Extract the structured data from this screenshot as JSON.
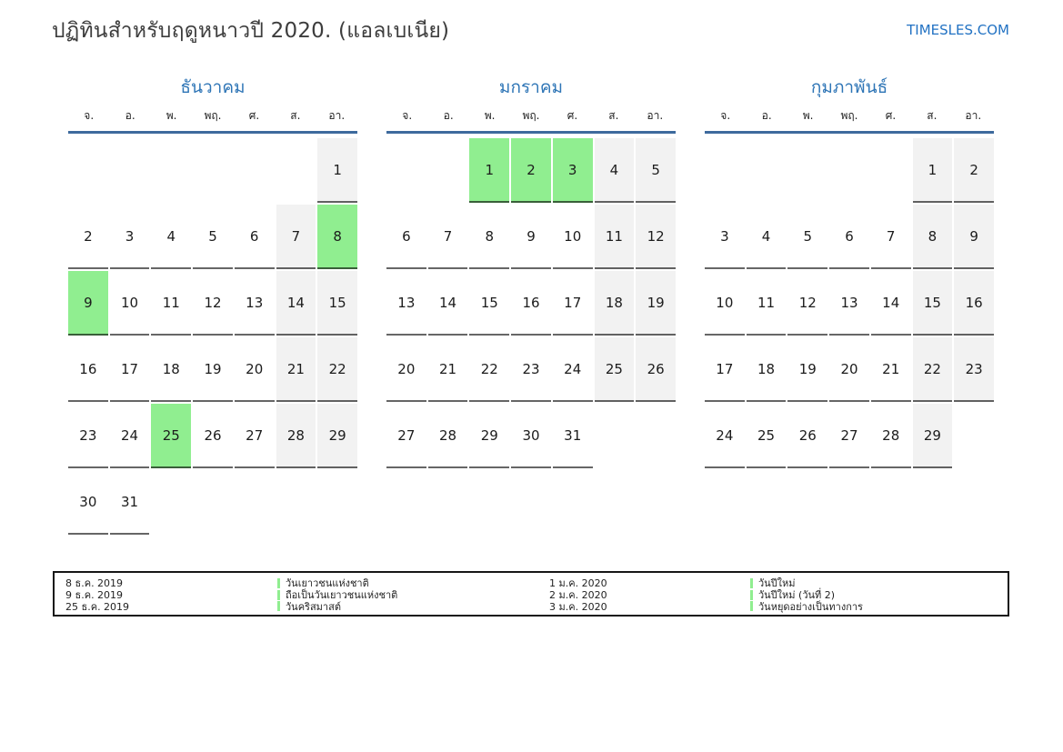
{
  "header": {
    "title": "ปฏิทินสำหรับฤดูหนาวปี 2020. (แอลเบเนีย)",
    "site": "TIMESLES.COM"
  },
  "weekdays": [
    "จ.",
    "อ.",
    "พ.",
    "พฤ.",
    "ศ.",
    "ส.",
    "อา."
  ],
  "months": [
    {
      "name": "ธันวาคม",
      "weeks": [
        [
          null,
          null,
          null,
          null,
          null,
          null,
          {
            "d": "1",
            "t": "weekend"
          }
        ],
        [
          {
            "d": "2",
            "t": "workday"
          },
          {
            "d": "3",
            "t": "workday"
          },
          {
            "d": "4",
            "t": "workday"
          },
          {
            "d": "5",
            "t": "workday"
          },
          {
            "d": "6",
            "t": "workday"
          },
          {
            "d": "7",
            "t": "weekend"
          },
          {
            "d": "8",
            "t": "holiday"
          }
        ],
        [
          {
            "d": "9",
            "t": "holiday"
          },
          {
            "d": "10",
            "t": "workday"
          },
          {
            "d": "11",
            "t": "workday"
          },
          {
            "d": "12",
            "t": "workday"
          },
          {
            "d": "13",
            "t": "workday"
          },
          {
            "d": "14",
            "t": "weekend"
          },
          {
            "d": "15",
            "t": "weekend"
          }
        ],
        [
          {
            "d": "16",
            "t": "workday"
          },
          {
            "d": "17",
            "t": "workday"
          },
          {
            "d": "18",
            "t": "workday"
          },
          {
            "d": "19",
            "t": "workday"
          },
          {
            "d": "20",
            "t": "workday"
          },
          {
            "d": "21",
            "t": "weekend"
          },
          {
            "d": "22",
            "t": "weekend"
          }
        ],
        [
          {
            "d": "23",
            "t": "workday"
          },
          {
            "d": "24",
            "t": "workday"
          },
          {
            "d": "25",
            "t": "holiday"
          },
          {
            "d": "26",
            "t": "workday"
          },
          {
            "d": "27",
            "t": "workday"
          },
          {
            "d": "28",
            "t": "weekend"
          },
          {
            "d": "29",
            "t": "weekend"
          }
        ],
        [
          {
            "d": "30",
            "t": "workday"
          },
          {
            "d": "31",
            "t": "workday"
          },
          null,
          null,
          null,
          null,
          null
        ]
      ]
    },
    {
      "name": "มกราคม",
      "weeks": [
        [
          null,
          null,
          {
            "d": "1",
            "t": "holiday"
          },
          {
            "d": "2",
            "t": "holiday"
          },
          {
            "d": "3",
            "t": "holiday"
          },
          {
            "d": "4",
            "t": "weekend"
          },
          {
            "d": "5",
            "t": "weekend"
          }
        ],
        [
          {
            "d": "6",
            "t": "workday"
          },
          {
            "d": "7",
            "t": "workday"
          },
          {
            "d": "8",
            "t": "workday"
          },
          {
            "d": "9",
            "t": "workday"
          },
          {
            "d": "10",
            "t": "workday"
          },
          {
            "d": "11",
            "t": "weekend"
          },
          {
            "d": "12",
            "t": "weekend"
          }
        ],
        [
          {
            "d": "13",
            "t": "workday"
          },
          {
            "d": "14",
            "t": "workday"
          },
          {
            "d": "15",
            "t": "workday"
          },
          {
            "d": "16",
            "t": "workday"
          },
          {
            "d": "17",
            "t": "workday"
          },
          {
            "d": "18",
            "t": "weekend"
          },
          {
            "d": "19",
            "t": "weekend"
          }
        ],
        [
          {
            "d": "20",
            "t": "workday"
          },
          {
            "d": "21",
            "t": "workday"
          },
          {
            "d": "22",
            "t": "workday"
          },
          {
            "d": "23",
            "t": "workday"
          },
          {
            "d": "24",
            "t": "workday"
          },
          {
            "d": "25",
            "t": "weekend"
          },
          {
            "d": "26",
            "t": "weekend"
          }
        ],
        [
          {
            "d": "27",
            "t": "workday"
          },
          {
            "d": "28",
            "t": "workday"
          },
          {
            "d": "29",
            "t": "workday"
          },
          {
            "d": "30",
            "t": "workday"
          },
          {
            "d": "31",
            "t": "workday"
          },
          null,
          null
        ]
      ]
    },
    {
      "name": "กุมภาพันธ์",
      "weeks": [
        [
          null,
          null,
          null,
          null,
          null,
          {
            "d": "1",
            "t": "weekend"
          },
          {
            "d": "2",
            "t": "weekend"
          }
        ],
        [
          {
            "d": "3",
            "t": "workday"
          },
          {
            "d": "4",
            "t": "workday"
          },
          {
            "d": "5",
            "t": "workday"
          },
          {
            "d": "6",
            "t": "workday"
          },
          {
            "d": "7",
            "t": "workday"
          },
          {
            "d": "8",
            "t": "weekend"
          },
          {
            "d": "9",
            "t": "weekend"
          }
        ],
        [
          {
            "d": "10",
            "t": "workday"
          },
          {
            "d": "11",
            "t": "workday"
          },
          {
            "d": "12",
            "t": "workday"
          },
          {
            "d": "13",
            "t": "workday"
          },
          {
            "d": "14",
            "t": "workday"
          },
          {
            "d": "15",
            "t": "weekend"
          },
          {
            "d": "16",
            "t": "weekend"
          }
        ],
        [
          {
            "d": "17",
            "t": "workday"
          },
          {
            "d": "18",
            "t": "workday"
          },
          {
            "d": "19",
            "t": "workday"
          },
          {
            "d": "20",
            "t": "workday"
          },
          {
            "d": "21",
            "t": "workday"
          },
          {
            "d": "22",
            "t": "weekend"
          },
          {
            "d": "23",
            "t": "weekend"
          }
        ],
        [
          {
            "d": "24",
            "t": "workday"
          },
          {
            "d": "25",
            "t": "workday"
          },
          {
            "d": "26",
            "t": "workday"
          },
          {
            "d": "27",
            "t": "workday"
          },
          {
            "d": "28",
            "t": "workday"
          },
          {
            "d": "29",
            "t": "weekend"
          },
          null
        ]
      ]
    }
  ],
  "legend": {
    "groups": [
      {
        "entries": [
          {
            "date": "8 ธ.ค. 2019",
            "name": "วันเยาวชนแห่งชาติ"
          },
          {
            "date": "9 ธ.ค. 2019",
            "name": "ถือเป็นวันเยาวชนแห่งชาติ"
          },
          {
            "date": "25 ธ.ค. 2019",
            "name": "วันคริสมาสต์"
          }
        ]
      },
      {
        "entries": [
          {
            "date": "1 ม.ค. 2020",
            "name": "วันปีใหม่"
          },
          {
            "date": "2 ม.ค. 2020",
            "name": "วันปีใหม่ (วันที่ 2)"
          },
          {
            "date": "3 ม.ค. 2020",
            "name": "วันหยุดอย่างเป็นทางการ"
          }
        ]
      }
    ]
  },
  "colors": {
    "accent_blue": "#2e75b6",
    "header_line_blue": "#3e6a9d",
    "site_link_blue": "#2272c3",
    "holiday_green": "#90ee90",
    "weekend_gray": "#f2f2f2"
  }
}
